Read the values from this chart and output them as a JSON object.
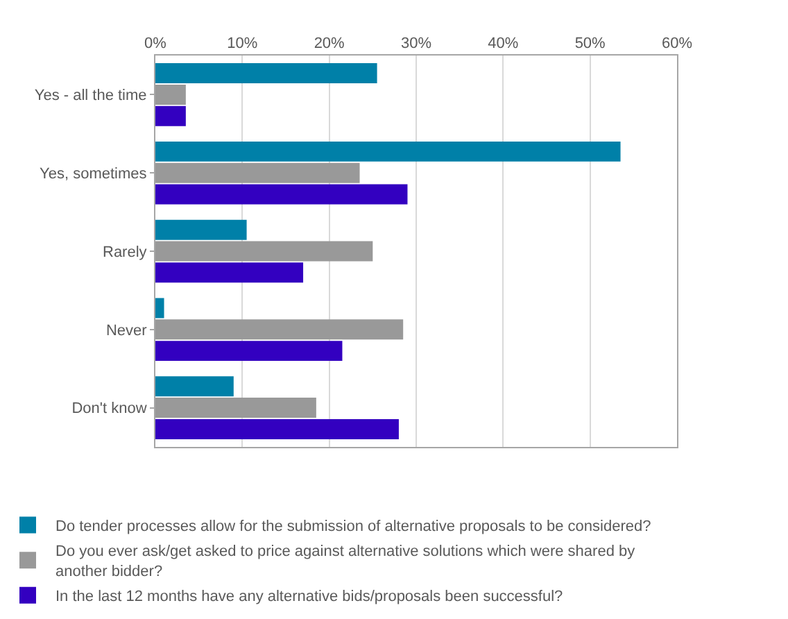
{
  "chart_data": {
    "type": "bar",
    "orientation": "horizontal",
    "categories": [
      "Yes - all the time",
      "Yes, sometimes",
      "Rarely",
      "Never",
      "Don't know"
    ],
    "series": [
      {
        "name": "Do tender processes allow for the submission of alternative proposals to be considered?",
        "color": "#0080a8",
        "values": [
          25.5,
          53.5,
          10.5,
          1,
          9
        ]
      },
      {
        "name": "Do you ever ask/get asked to price against alternative solutions which were shared by another bidder?",
        "color": "#999999",
        "values": [
          3.5,
          23.5,
          25,
          28.5,
          18.5
        ]
      },
      {
        "name": "In the last 12 months have any alternative bids/proposals been successful?",
        "color": "#3300c0",
        "values": [
          3.5,
          29,
          17,
          21.5,
          28
        ]
      }
    ],
    "xlim": [
      0,
      60
    ],
    "xticks": [
      {
        "value": 0,
        "label": "0%"
      },
      {
        "value": 10,
        "label": "10%"
      },
      {
        "value": 20,
        "label": "20%"
      },
      {
        "value": 30,
        "label": "30%"
      },
      {
        "value": 40,
        "label": "40%"
      },
      {
        "value": 50,
        "label": "50%"
      },
      {
        "value": 60,
        "label": "60%"
      }
    ],
    "grid": "x",
    "legend": "bottom"
  }
}
